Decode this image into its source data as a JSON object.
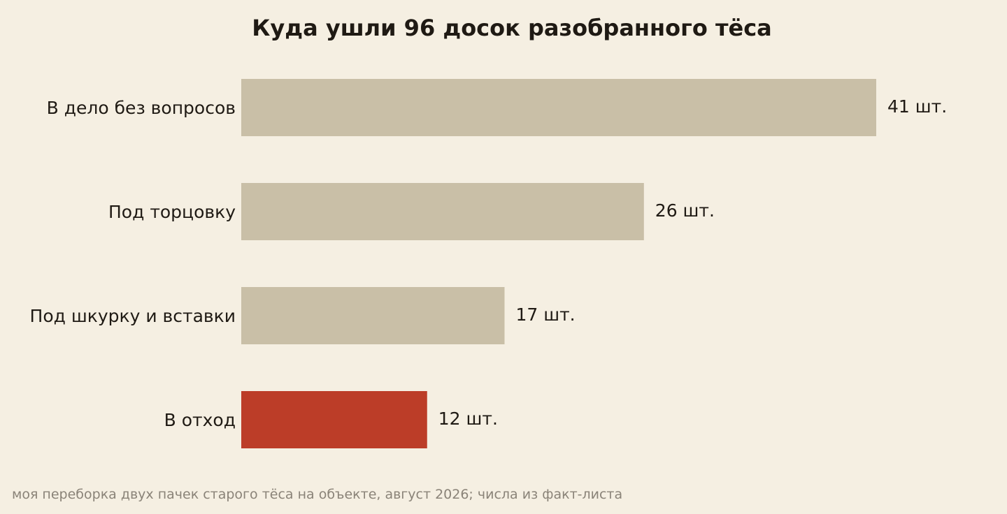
{
  "chart_data": {
    "type": "bar",
    "orientation": "horizontal",
    "title": "Куда ушли 96 досок разобранного тёса",
    "categories": [
      "В дело без вопросов",
      "Под торцовку",
      "Под шкурку и вставки",
      "В отход"
    ],
    "values": [
      41,
      26,
      17,
      12
    ],
    "value_labels": [
      "41 шт.",
      "26 шт.",
      "17 шт.",
      "12 шт."
    ],
    "xlim": [
      0,
      41
    ],
    "grid": false,
    "colors": {
      "default_bar": "#c9bfa7",
      "highlight_bar": "#bc3d28",
      "background": "#f5efe2",
      "text": "#1f1a14",
      "source": "#8a8378"
    },
    "highlight_index": 3,
    "source_note": "моя переборка двух пачек старого тёса на объекте, август 2026; числа из факт-листа"
  }
}
